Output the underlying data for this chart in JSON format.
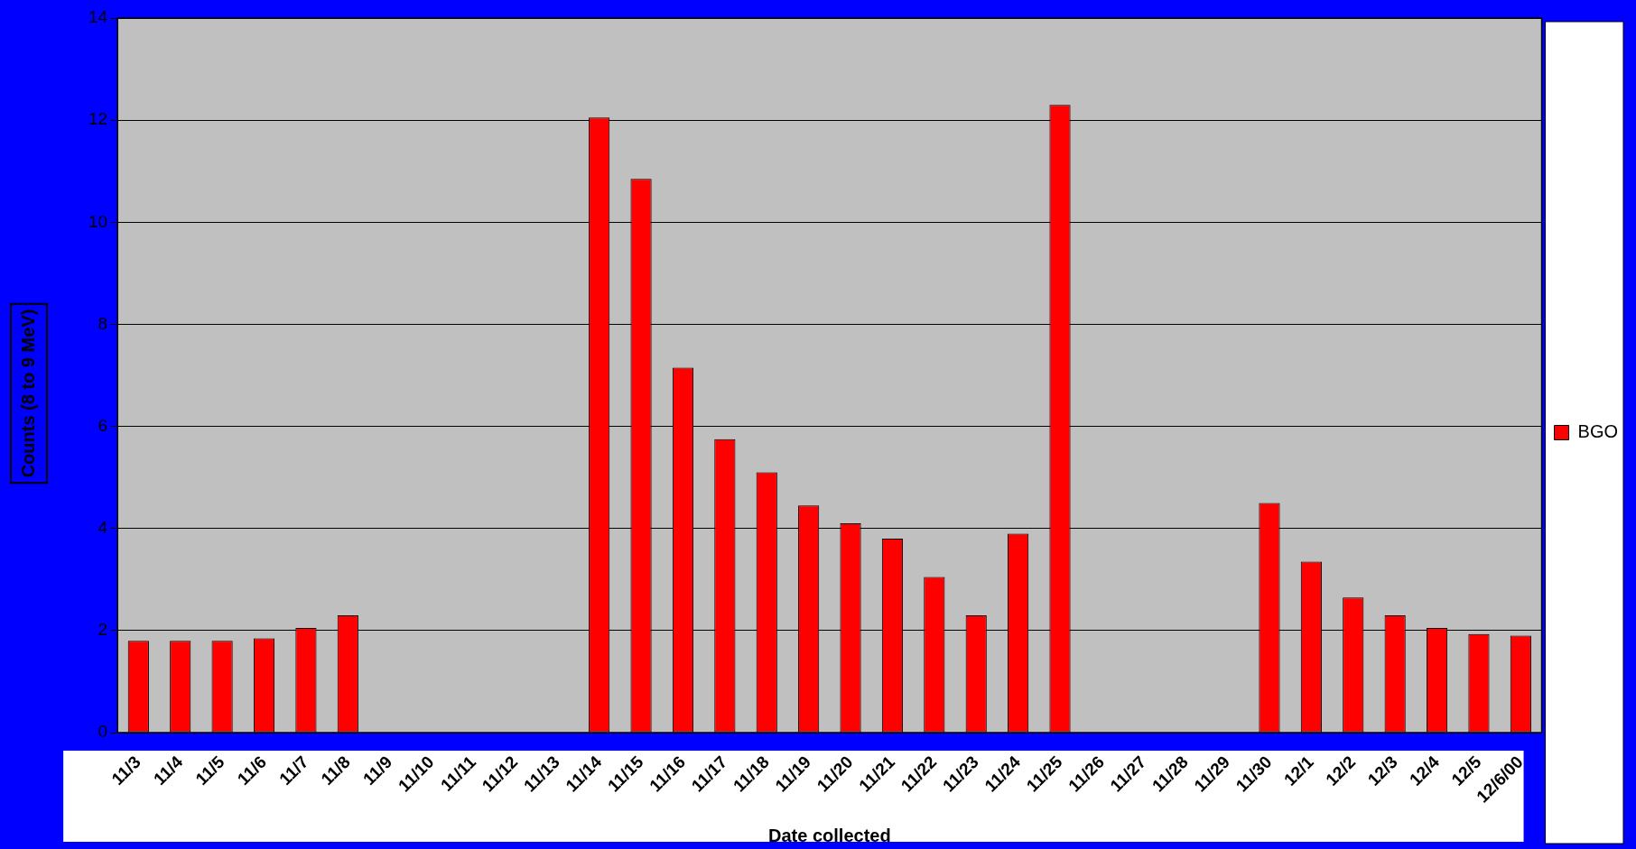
{
  "chart_data": {
    "type": "bar",
    "xlabel": "Date collected",
    "ylabel": "Counts (8 to 9 MeV)",
    "categories": [
      "11/3",
      "11/4",
      "11/5",
      "11/6",
      "11/7",
      "11/8",
      "11/9",
      "11/10",
      "11/11",
      "11/12",
      "11/13",
      "11/14",
      "11/15",
      "11/16",
      "11/17",
      "11/18",
      "11/19",
      "11/20",
      "11/21",
      "11/22",
      "11/23",
      "11/24",
      "11/25",
      "11/26",
      "11/27",
      "11/28",
      "11/29",
      "11/30",
      "12/1",
      "12/2",
      "12/3",
      "12/4",
      "12/5",
      "12/6/00"
    ],
    "series": [
      {
        "name": "BGO",
        "color": "#ff0000",
        "values": [
          1.8,
          1.8,
          1.8,
          1.85,
          2.05,
          2.3,
          null,
          null,
          null,
          null,
          null,
          12.05,
          10.85,
          7.15,
          5.75,
          5.1,
          4.45,
          4.1,
          3.8,
          3.05,
          2.3,
          3.9,
          12.3,
          null,
          null,
          null,
          null,
          4.5,
          3.35,
          2.65,
          2.3,
          2.05,
          1.93,
          1.9
        ]
      }
    ],
    "ylim": [
      0,
      14
    ],
    "yticks": [
      0,
      2,
      4,
      6,
      8,
      10,
      12,
      14
    ],
    "grid": "y",
    "legend": "right"
  }
}
